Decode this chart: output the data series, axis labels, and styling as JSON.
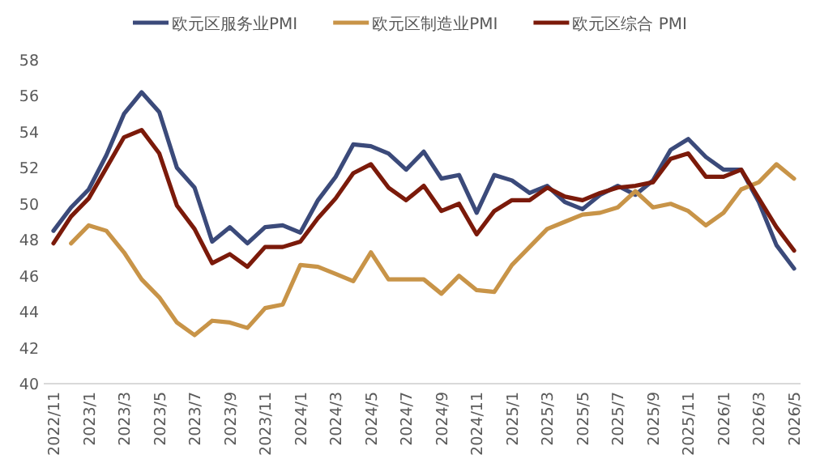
{
  "chart_data": {
    "type": "line",
    "categories": [
      "2022/11",
      null,
      "2023/1",
      null,
      "2023/3",
      null,
      "2023/5",
      null,
      "2023/7",
      null,
      "2023/9",
      null,
      "2023/11",
      null,
      "2024/1",
      null,
      "2024/3",
      null,
      "2024/5",
      null,
      "2024/7",
      null,
      "2024/9",
      null,
      "2024/11",
      null,
      "2025/1",
      null,
      "2025/3",
      null,
      "2025/5",
      null,
      "2025/7",
      null,
      "2025/9",
      null,
      "2025/11",
      null,
      "2026/1",
      null,
      "2026/3",
      null,
      "2026/5"
    ],
    "series": [
      {
        "name": "欧元区服务业PMI",
        "color": "#3b4a7a",
        "values": [
          48.5,
          49.8,
          50.8,
          52.7,
          55.0,
          56.2,
          55.1,
          52.0,
          50.9,
          47.9,
          48.7,
          47.8,
          48.7,
          48.8,
          48.4,
          50.2,
          51.5,
          53.3,
          53.2,
          52.8,
          51.9,
          52.9,
          51.4,
          51.6,
          49.5,
          51.6,
          51.3,
          50.6,
          51.0,
          50.1,
          49.7,
          50.5,
          51.0,
          50.5,
          51.3,
          53.0,
          53.6,
          52.6,
          51.9,
          51.9,
          50.1,
          47.7,
          46.4
        ]
      },
      {
        "name": "欧元区制造业PMI",
        "color": "#c89448",
        "values": [
          null,
          47.8,
          48.8,
          48.5,
          47.3,
          45.8,
          44.8,
          43.4,
          42.7,
          43.5,
          43.4,
          43.1,
          44.2,
          44.4,
          46.6,
          46.5,
          46.1,
          45.7,
          47.3,
          45.8,
          45.8,
          45.8,
          45.0,
          46.0,
          45.2,
          45.1,
          46.6,
          47.6,
          48.6,
          49.0,
          49.4,
          49.5,
          49.8,
          50.7,
          49.8,
          50.0,
          49.6,
          48.8,
          49.5,
          50.8,
          51.2,
          52.2,
          51.4
        ]
      },
      {
        "name": "欧元区综合 PMI",
        "color": "#7b1a0a",
        "values": [
          47.8,
          49.3,
          50.3,
          52.0,
          53.7,
          54.1,
          52.8,
          49.9,
          48.6,
          46.7,
          47.2,
          46.5,
          47.6,
          47.6,
          47.9,
          49.2,
          50.3,
          51.7,
          52.2,
          50.9,
          50.2,
          51.0,
          49.6,
          50.0,
          48.3,
          49.6,
          50.2,
          50.2,
          50.9,
          50.4,
          50.2,
          50.6,
          50.9,
          51.0,
          51.2,
          52.5,
          52.8,
          51.5,
          51.5,
          51.9,
          50.3,
          48.7,
          47.4
        ]
      }
    ],
    "ylim": [
      40,
      58
    ],
    "yticks": [
      40,
      42,
      44,
      46,
      48,
      50,
      52,
      54,
      56,
      58
    ],
    "legend": "top",
    "grid": false,
    "marker": "none",
    "line_style": "solid"
  }
}
